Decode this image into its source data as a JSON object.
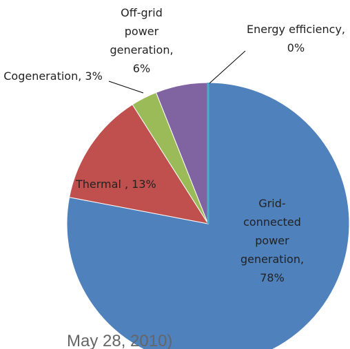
{
  "chart_data": {
    "type": "pie",
    "labels": [
      "Grid-connected power generation, 78%",
      "Thermal , 13%",
      "Cogeneration, 3%",
      "Off-grid power generation, 6%",
      "Energy efficiency, 0%"
    ],
    "values": [
      78,
      13,
      3,
      6,
      0
    ],
    "colors": [
      "#4f81bd",
      "#c0504d",
      "#9bbb59",
      "#8064a2",
      "#4bacc6"
    ],
    "footer": "May 28, 2010)"
  }
}
